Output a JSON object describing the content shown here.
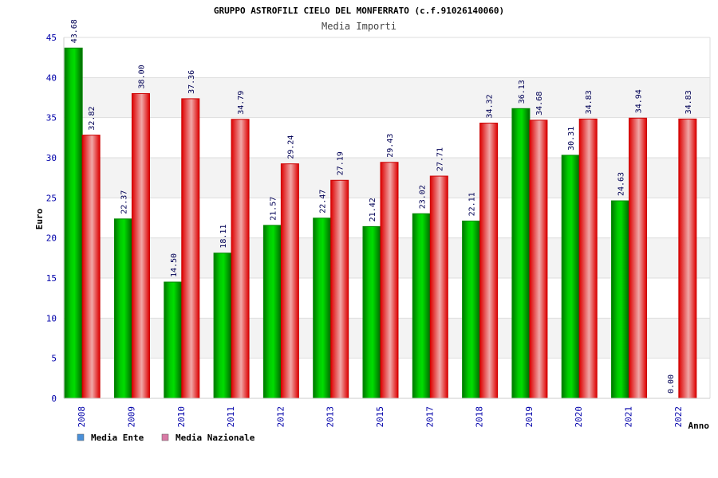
{
  "chart_data": {
    "type": "bar",
    "title": "GRUPPO ASTROFILI CIELO DEL MONFERRATO (c.f.91026140060)",
    "subtitle": "Media Importi",
    "ylabel": "Euro",
    "xlabel": "Anno",
    "ylim": [
      0,
      45
    ],
    "yticks": [
      0,
      5,
      10,
      15,
      20,
      25,
      30,
      35,
      40,
      45
    ],
    "grid": true,
    "legend_position": "bottom-left",
    "categories": [
      "2008",
      "2009",
      "2010",
      "2011",
      "2012",
      "2013",
      "2015",
      "2017",
      "2018",
      "2019",
      "2020",
      "2021",
      "2022"
    ],
    "series": [
      {
        "name": "Media Ente",
        "color": "#00aa00",
        "legend_color": "#4a90d9",
        "values": [
          43.68,
          22.37,
          14.5,
          18.11,
          21.57,
          22.47,
          21.42,
          23.02,
          22.11,
          36.13,
          30.31,
          24.63,
          0.0
        ],
        "labels": [
          "43.68",
          "22.37",
          "14.50",
          "18.11",
          "21.57",
          "22.47",
          "21.42",
          "23.02",
          "22.11",
          "36.13",
          "30.31",
          "24.63",
          "0.00"
        ]
      },
      {
        "name": "Media Nazionale",
        "color": "#dd0000",
        "legend_color": "#d97aa6",
        "values": [
          32.82,
          38.0,
          37.36,
          34.79,
          29.24,
          27.19,
          29.43,
          27.71,
          34.32,
          34.68,
          34.83,
          34.94,
          34.83
        ],
        "labels": [
          "32.82",
          "38.00",
          "37.36",
          "34.79",
          "29.24",
          "27.19",
          "29.43",
          "27.71",
          "34.32",
          "34.68",
          "34.83",
          "34.94",
          "34.83"
        ]
      }
    ]
  }
}
